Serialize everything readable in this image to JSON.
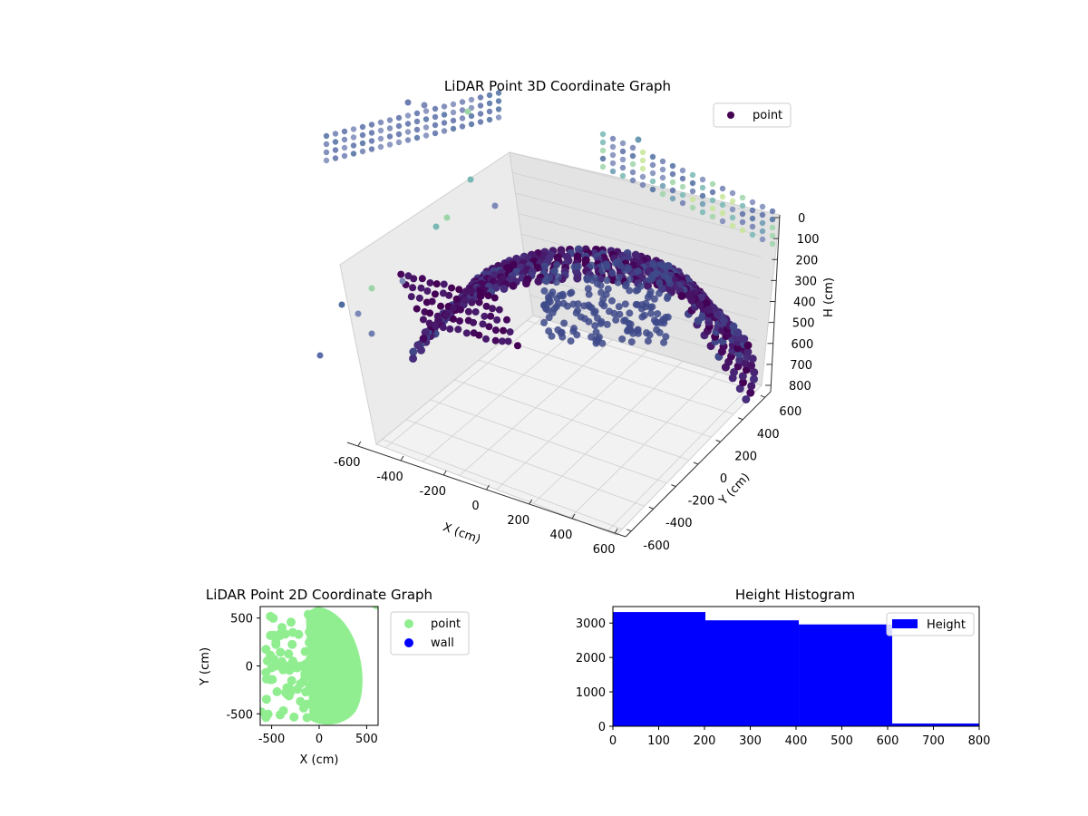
{
  "chart_data": [
    {
      "type": "scatter",
      "title": "LiDAR Point 3D Coordinate Graph",
      "xlabel": "X (cm)",
      "ylabel": "Y (cm)",
      "zlabel": "H (cm)",
      "x_ticks": [
        "-600",
        "-400",
        "-200",
        "0",
        "200",
        "400",
        "600"
      ],
      "y_ticks": [
        "-600",
        "-400",
        "-200",
        "0",
        "200",
        "400",
        "600"
      ],
      "z_ticks": [
        "0",
        "100",
        "200",
        "300",
        "400",
        "500",
        "600",
        "700",
        "800"
      ],
      "xlim": [
        -650,
        650
      ],
      "ylim": [
        -650,
        650
      ],
      "zlim": [
        0,
        800
      ],
      "z_inverted": true,
      "colormap": "viridis",
      "legend": [
        {
          "label": "point",
          "color": "#440154"
        }
      ],
      "legend_position": "upper right",
      "grid": true
    },
    {
      "type": "scatter",
      "title": "LiDAR Point 2D Coordinate Graph",
      "xlabel": "X (cm)",
      "ylabel": "Y (cm)",
      "x_ticks": [
        "-500",
        "0",
        "500"
      ],
      "y_ticks": [
        "-500",
        "0",
        "500"
      ],
      "xlim": [
        -620,
        620
      ],
      "ylim": [
        -620,
        620
      ],
      "legend": [
        {
          "label": "point",
          "color": "#90ee90"
        },
        {
          "label": "wall",
          "color": "#0000ff"
        }
      ],
      "legend_position": "outside right",
      "series": [
        {
          "name": "point",
          "color": "#90ee90"
        }
      ]
    },
    {
      "type": "bar",
      "title": "Height Histogram",
      "x_ticks": [
        "0",
        "100",
        "200",
        "300",
        "400",
        "500",
        "600",
        "700",
        "800"
      ],
      "y_ticks": [
        "0",
        "1000",
        "2000",
        "3000"
      ],
      "xlim": [
        0,
        800
      ],
      "ylim": [
        0,
        3480
      ],
      "bins": [
        {
          "start": 0,
          "end": 202,
          "count": 3320
        },
        {
          "start": 202,
          "end": 406,
          "count": 3080
        },
        {
          "start": 406,
          "end": 610,
          "count": 2960
        },
        {
          "start": 610,
          "end": 800,
          "count": 80
        }
      ],
      "color": "#0000ff",
      "legend": [
        {
          "label": "Height",
          "color": "#0000ff"
        }
      ],
      "legend_position": "upper right"
    }
  ]
}
